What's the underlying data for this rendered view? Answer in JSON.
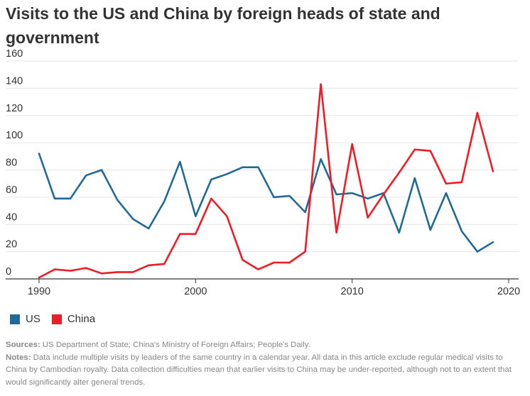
{
  "title": "Visits to the US and China by foreign heads of state and government",
  "colors": {
    "US": "#1f6a96",
    "China": "#ee1c25",
    "grid": "#e6e6e6",
    "axis": "#333333"
  },
  "chart_data": {
    "type": "line",
    "x": [
      1990,
      1991,
      1992,
      1993,
      1994,
      1995,
      1996,
      1997,
      1998,
      1999,
      2000,
      2001,
      2002,
      2003,
      2004,
      2005,
      2006,
      2007,
      2008,
      2009,
      2010,
      2011,
      2012,
      2013,
      2014,
      2015,
      2016,
      2017,
      2018,
      2019
    ],
    "series": [
      {
        "name": "US",
        "values": [
          92,
          59,
          59,
          76,
          80,
          58,
          44,
          37,
          57,
          86,
          46,
          73,
          77,
          82,
          82,
          60,
          61,
          49,
          88,
          62,
          63,
          59,
          63,
          34,
          74,
          36,
          63,
          35,
          20,
          27
        ]
      },
      {
        "name": "China",
        "values": [
          1,
          7,
          6,
          8,
          4,
          5,
          5,
          10,
          11,
          33,
          33,
          59,
          46,
          14,
          7,
          12,
          12,
          20,
          143,
          34,
          99,
          45,
          62,
          78,
          95,
          94,
          70,
          71,
          122,
          79
        ]
      }
    ],
    "xlim": [
      1990,
      2020
    ],
    "ylim": [
      0,
      160
    ],
    "x_ticks": [
      "1990",
      "2000",
      "2010",
      "2020"
    ],
    "y_ticks": [
      "0",
      "20",
      "40",
      "60",
      "80",
      "100",
      "120",
      "140",
      "160"
    ],
    "xlabel": "",
    "ylabel": "",
    "grid": true,
    "legend": "bottom-left"
  },
  "legend": {
    "us_label": "US",
    "china_label": "China"
  },
  "footer": {
    "sources_label": "Sources:",
    "sources_text": " US Department of State; China's Ministry of Foreign Affairs; People's Daily.",
    "notes_label": "Notes:",
    "notes_text": " Data include multiple visits by leaders of the same country in a calendar year. All data in this article exclude regular medical visits to China by Cambodian royalty. Data collection difficulties mean that earlier visits to China may be under-reported, although not to an extent that would significantly alter general trends."
  }
}
